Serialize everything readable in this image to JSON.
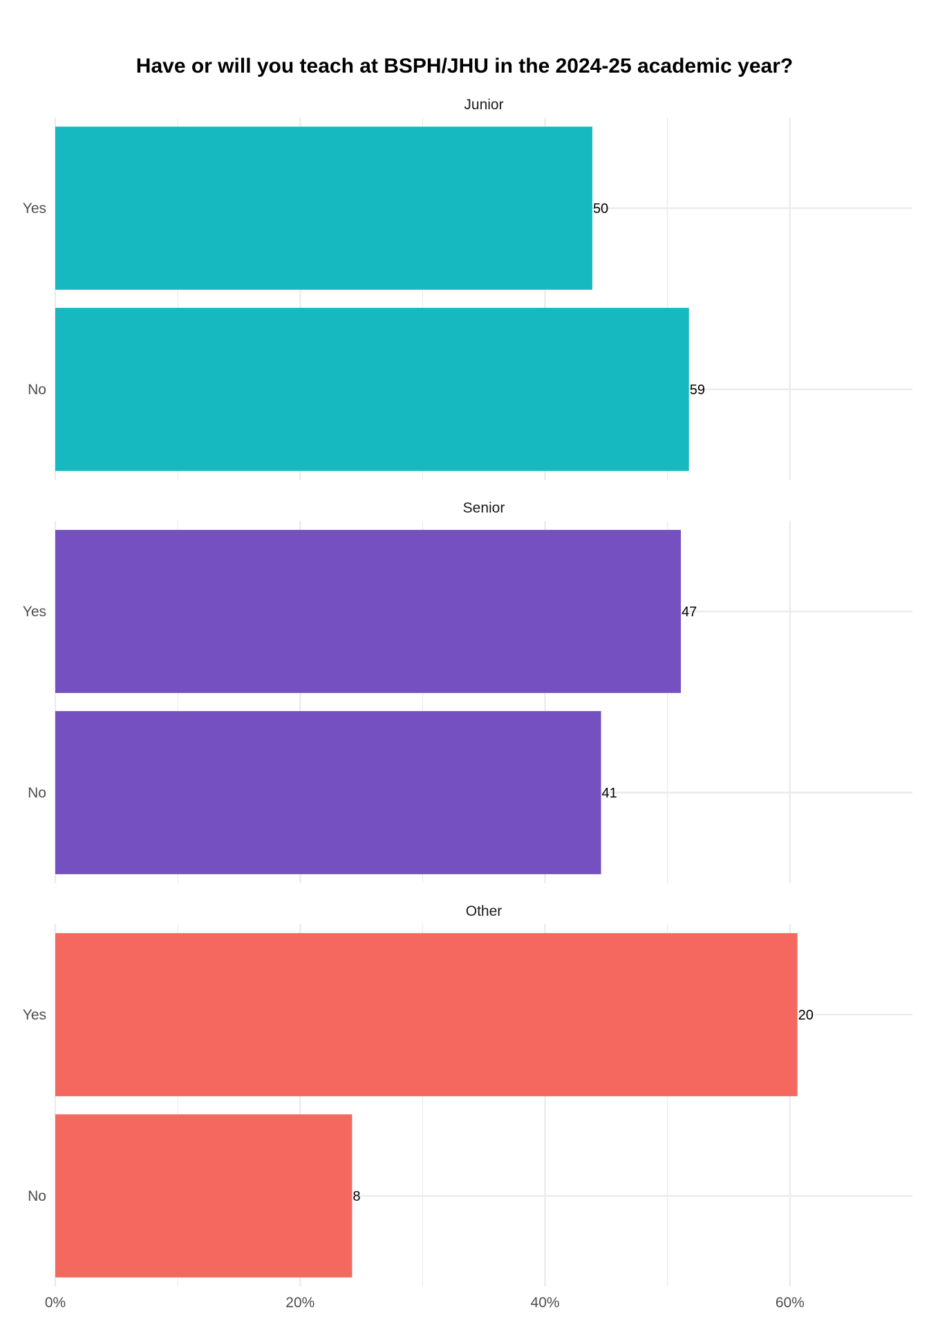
{
  "chart_data": {
    "type": "bar",
    "orientation": "horizontal",
    "title": "Have or will you teach at BSPH/JHU in the 2024-25 academic year?",
    "categories": [
      "Yes",
      "No"
    ],
    "xlim": [
      0,
      0.7
    ],
    "x_ticks": [
      0,
      0.2,
      0.4,
      0.6
    ],
    "x_tick_labels": [
      "0%",
      "20%",
      "40%",
      "60%"
    ],
    "grid": true,
    "legend": "none",
    "facets": [
      {
        "name": "Junior",
        "color": "#17B9C1",
        "values": [
          0.4386,
          0.5175
        ],
        "labels": [
          "50",
          "59"
        ]
      },
      {
        "name": "Senior",
        "color": "#7550C1",
        "values": [
          0.5109,
          0.4457
        ],
        "labels": [
          "47",
          "41"
        ]
      },
      {
        "name": "Other",
        "color": "#F4685F",
        "values": [
          0.6061,
          0.2424
        ],
        "labels": [
          "20",
          "8"
        ]
      }
    ]
  }
}
